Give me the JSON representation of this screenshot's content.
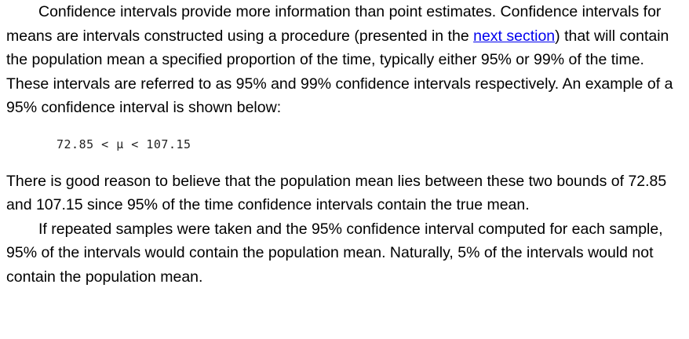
{
  "paragraph_1": {
    "before_link": "Confidence intervals provide more information than point estimates. Confidence intervals for means are intervals constructed using a procedure (presented in the ",
    "link_text": "next section",
    "after_link": ") that will contain the population mean a specified proportion of the time, typically either 95% or 99% of the time. These intervals are referred to as 95% and 99% confidence intervals respectively. An example of a 95% confidence interval is shown below:"
  },
  "formula": "72.85 < μ < 107.15",
  "paragraph_2": "There is good reason to believe that the population mean lies between these two bounds of 72.85 and 107.15 since 95% of the time confidence intervals contain the true mean.",
  "paragraph_3": "If repeated samples were taken and the 95% confidence interval computed for each sample, 95% of the intervals would contain the population mean. Naturally, 5% of the intervals would not contain the population mean.",
  "colors": {
    "link": "#0000ee",
    "text": "#000000"
  }
}
